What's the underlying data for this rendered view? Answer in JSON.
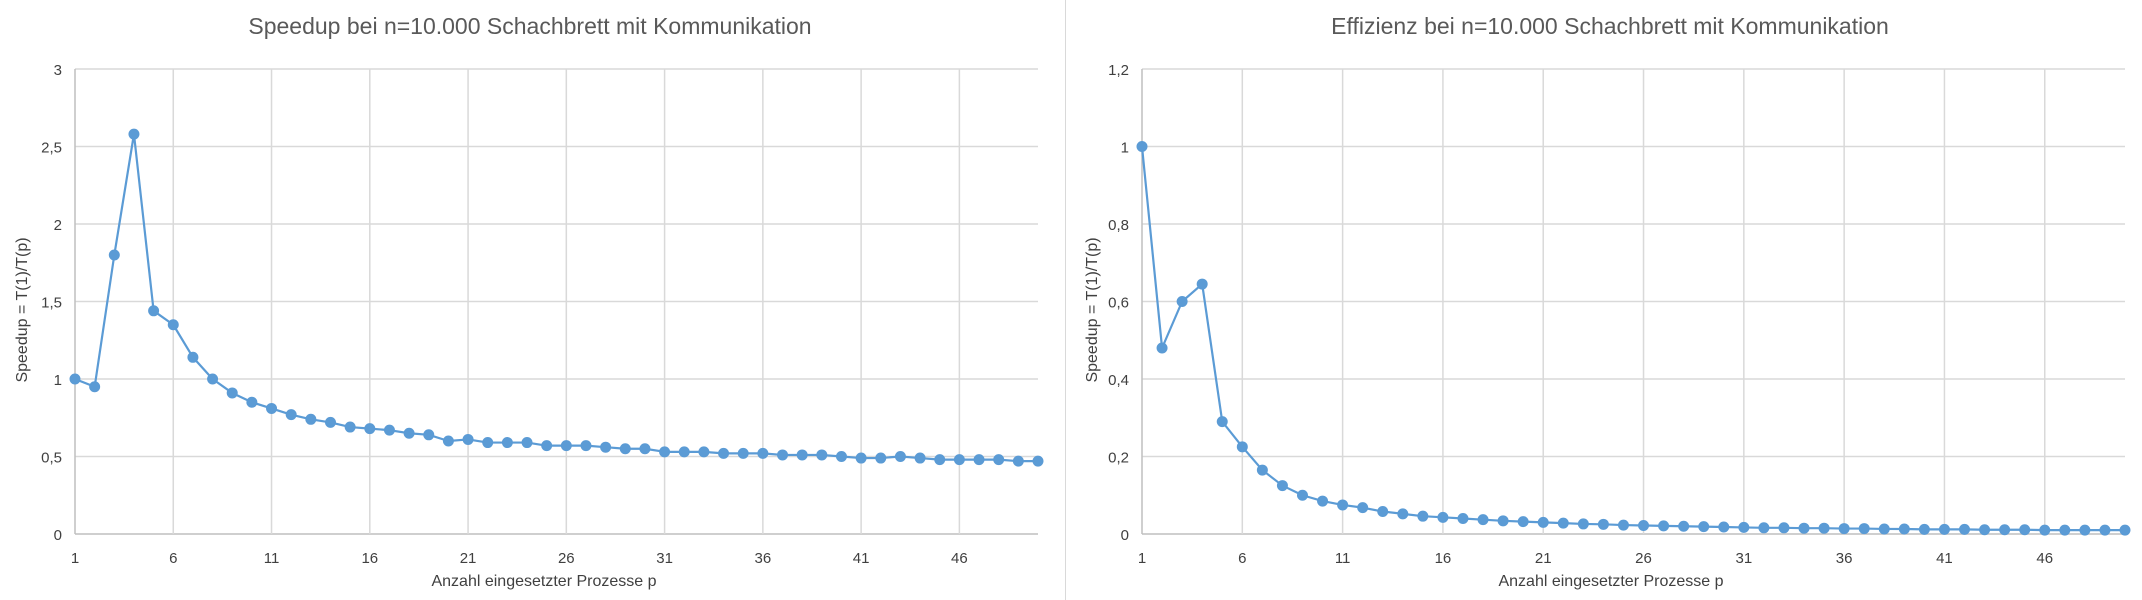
{
  "chart_data": [
    {
      "type": "line",
      "title": "Speedup bei n=10.000 Schachbrett mit Kommunikation",
      "xlabel": "Anzahl eingesetzter Prozesse p",
      "ylabel": "Speedup = T(1)/T(p)",
      "xlim": [
        1,
        50
      ],
      "ylim": [
        0,
        3
      ],
      "x_ticks": [
        "1",
        "6",
        "11",
        "16",
        "21",
        "26",
        "31",
        "36",
        "41",
        "46"
      ],
      "y_ticks": [
        "0",
        "0,5",
        "1",
        "1,5",
        "2",
        "2,5",
        "3"
      ],
      "grid": true,
      "color": "#5b9bd5",
      "series": [
        {
          "values": [
            1.0,
            0.95,
            1.8,
            2.58,
            1.44,
            1.35,
            1.14,
            1.0,
            0.91,
            0.85,
            0.81,
            0.77,
            0.74,
            0.72,
            0.69,
            0.68,
            0.67,
            0.65,
            0.64,
            0.6,
            0.61,
            0.59,
            0.59,
            0.59,
            0.57,
            0.57,
            0.57,
            0.56,
            0.55,
            0.55,
            0.53,
            0.53,
            0.53,
            0.52,
            0.52,
            0.52,
            0.51,
            0.51,
            0.51,
            0.5,
            0.49,
            0.49,
            0.5,
            0.49,
            0.48,
            0.48,
            0.48,
            0.48,
            0.47,
            0.47
          ]
        }
      ]
    },
    {
      "type": "line",
      "title": "Effizienz bei n=10.000 Schachbrett mit Kommunikation",
      "xlabel": "Anzahl eingesetzter Prozesse p",
      "ylabel": "Speedup = T(1)/T(p)",
      "xlim": [
        1,
        50
      ],
      "ylim": [
        0,
        1.2
      ],
      "x_ticks": [
        "1",
        "6",
        "11",
        "16",
        "21",
        "26",
        "31",
        "36",
        "41",
        "46"
      ],
      "y_ticks": [
        "0",
        "0,2",
        "0,4",
        "0,6",
        "0,8",
        "1",
        "1,2"
      ],
      "grid": true,
      "color": "#5b9bd5",
      "series": [
        {
          "values": [
            1.0,
            0.48,
            0.6,
            0.645,
            0.29,
            0.225,
            0.165,
            0.125,
            0.1,
            0.085,
            0.075,
            0.068,
            0.058,
            0.052,
            0.046,
            0.043,
            0.04,
            0.037,
            0.034,
            0.032,
            0.03,
            0.028,
            0.026,
            0.025,
            0.023,
            0.022,
            0.021,
            0.02,
            0.019,
            0.018,
            0.017,
            0.016,
            0.016,
            0.015,
            0.015,
            0.014,
            0.014,
            0.013,
            0.013,
            0.012,
            0.012,
            0.012,
            0.011,
            0.011,
            0.011,
            0.01,
            0.01,
            0.01,
            0.01,
            0.01
          ]
        }
      ]
    }
  ]
}
